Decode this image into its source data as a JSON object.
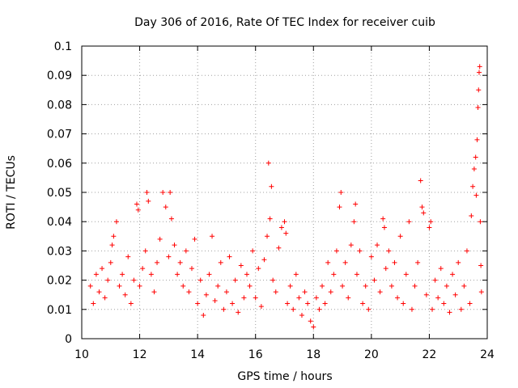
{
  "chart_data": {
    "type": "scatter",
    "title": "Day 306 of 2016, Rate Of TEC Index for receiver cuib",
    "xlabel": "GPS time / hours",
    "ylabel": "ROTI / TECUs",
    "xlim": [
      10,
      24
    ],
    "ylim": [
      0,
      0.1
    ],
    "x_ticks": [
      10,
      12,
      14,
      16,
      18,
      20,
      22,
      24
    ],
    "x_tick_labels": [
      "10",
      "12",
      "14",
      "16",
      "18",
      "20",
      "22",
      "24"
    ],
    "y_ticks": [
      0,
      0.01,
      0.02,
      0.03,
      0.04,
      0.05,
      0.06,
      0.07,
      0.08,
      0.09,
      0.1
    ],
    "y_tick_labels": [
      "0",
      "0.01",
      "0.02",
      "0.03",
      "0.04",
      "0.05",
      "0.06",
      "0.07",
      "0.08",
      "0.09",
      "0.1"
    ],
    "grid": true,
    "marker": "+",
    "marker_color": "#ff0000",
    "series": [
      {
        "name": "ROTI",
        "points": [
          [
            10.3,
            0.018
          ],
          [
            10.4,
            0.012
          ],
          [
            10.5,
            0.022
          ],
          [
            10.6,
            0.016
          ],
          [
            10.7,
            0.024
          ],
          [
            10.8,
            0.014
          ],
          [
            10.9,
            0.02
          ],
          [
            11.0,
            0.026
          ],
          [
            11.05,
            0.032
          ],
          [
            11.1,
            0.035
          ],
          [
            11.2,
            0.04
          ],
          [
            11.3,
            0.018
          ],
          [
            11.4,
            0.022
          ],
          [
            11.5,
            0.015
          ],
          [
            11.6,
            0.028
          ],
          [
            11.7,
            0.012
          ],
          [
            11.8,
            0.02
          ],
          [
            11.9,
            0.046
          ],
          [
            11.95,
            0.044
          ],
          [
            12.0,
            0.018
          ],
          [
            12.1,
            0.024
          ],
          [
            12.2,
            0.03
          ],
          [
            12.25,
            0.05
          ],
          [
            12.3,
            0.047
          ],
          [
            12.4,
            0.022
          ],
          [
            12.5,
            0.016
          ],
          [
            12.6,
            0.026
          ],
          [
            12.7,
            0.034
          ],
          [
            12.8,
            0.05
          ],
          [
            12.9,
            0.045
          ],
          [
            13.0,
            0.028
          ],
          [
            13.05,
            0.05
          ],
          [
            13.1,
            0.041
          ],
          [
            13.2,
            0.032
          ],
          [
            13.3,
            0.022
          ],
          [
            13.4,
            0.026
          ],
          [
            13.5,
            0.018
          ],
          [
            13.6,
            0.03
          ],
          [
            13.7,
            0.016
          ],
          [
            13.8,
            0.024
          ],
          [
            13.9,
            0.034
          ],
          [
            14.0,
            0.012
          ],
          [
            14.1,
            0.02
          ],
          [
            14.2,
            0.008
          ],
          [
            14.3,
            0.015
          ],
          [
            14.4,
            0.022
          ],
          [
            14.5,
            0.035
          ],
          [
            14.6,
            0.013
          ],
          [
            14.7,
            0.018
          ],
          [
            14.8,
            0.026
          ],
          [
            14.9,
            0.01
          ],
          [
            15.0,
            0.016
          ],
          [
            15.1,
            0.028
          ],
          [
            15.2,
            0.012
          ],
          [
            15.3,
            0.02
          ],
          [
            15.4,
            0.009
          ],
          [
            15.5,
            0.025
          ],
          [
            15.6,
            0.014
          ],
          [
            15.7,
            0.022
          ],
          [
            15.8,
            0.018
          ],
          [
            15.9,
            0.03
          ],
          [
            16.0,
            0.014
          ],
          [
            16.1,
            0.024
          ],
          [
            16.2,
            0.011
          ],
          [
            16.3,
            0.027
          ],
          [
            16.4,
            0.035
          ],
          [
            16.45,
            0.06
          ],
          [
            16.5,
            0.041
          ],
          [
            16.55,
            0.052
          ],
          [
            16.6,
            0.02
          ],
          [
            16.7,
            0.016
          ],
          [
            16.8,
            0.031
          ],
          [
            16.9,
            0.038
          ],
          [
            17.0,
            0.04
          ],
          [
            17.05,
            0.036
          ],
          [
            17.1,
            0.012
          ],
          [
            17.2,
            0.018
          ],
          [
            17.3,
            0.01
          ],
          [
            17.4,
            0.022
          ],
          [
            17.5,
            0.014
          ],
          [
            17.6,
            0.008
          ],
          [
            17.7,
            0.016
          ],
          [
            17.8,
            0.012
          ],
          [
            17.9,
            0.006
          ],
          [
            18.0,
            0.004
          ],
          [
            18.1,
            0.014
          ],
          [
            18.2,
            0.01
          ],
          [
            18.3,
            0.018
          ],
          [
            18.4,
            0.012
          ],
          [
            18.5,
            0.026
          ],
          [
            18.6,
            0.016
          ],
          [
            18.7,
            0.022
          ],
          [
            18.8,
            0.03
          ],
          [
            18.9,
            0.045
          ],
          [
            18.95,
            0.05
          ],
          [
            19.0,
            0.018
          ],
          [
            19.1,
            0.026
          ],
          [
            19.2,
            0.014
          ],
          [
            19.3,
            0.032
          ],
          [
            19.4,
            0.04
          ],
          [
            19.45,
            0.046
          ],
          [
            19.5,
            0.022
          ],
          [
            19.6,
            0.03
          ],
          [
            19.7,
            0.012
          ],
          [
            19.8,
            0.018
          ],
          [
            19.9,
            0.01
          ],
          [
            20.0,
            0.028
          ],
          [
            20.1,
            0.02
          ],
          [
            20.2,
            0.032
          ],
          [
            20.3,
            0.016
          ],
          [
            20.4,
            0.041
          ],
          [
            20.45,
            0.038
          ],
          [
            20.5,
            0.024
          ],
          [
            20.6,
            0.03
          ],
          [
            20.7,
            0.018
          ],
          [
            20.8,
            0.026
          ],
          [
            20.9,
            0.014
          ],
          [
            21.0,
            0.035
          ],
          [
            21.1,
            0.012
          ],
          [
            21.2,
            0.022
          ],
          [
            21.3,
            0.04
          ],
          [
            21.4,
            0.01
          ],
          [
            21.5,
            0.018
          ],
          [
            21.6,
            0.026
          ],
          [
            21.7,
            0.054
          ],
          [
            21.75,
            0.045
          ],
          [
            21.8,
            0.043
          ],
          [
            21.9,
            0.015
          ],
          [
            22.0,
            0.038
          ],
          [
            22.05,
            0.04
          ],
          [
            22.1,
            0.01
          ],
          [
            22.2,
            0.02
          ],
          [
            22.3,
            0.014
          ],
          [
            22.4,
            0.024
          ],
          [
            22.5,
            0.012
          ],
          [
            22.6,
            0.018
          ],
          [
            22.7,
            0.009
          ],
          [
            22.8,
            0.022
          ],
          [
            22.9,
            0.015
          ],
          [
            23.0,
            0.026
          ],
          [
            23.1,
            0.01
          ],
          [
            23.2,
            0.018
          ],
          [
            23.3,
            0.03
          ],
          [
            23.4,
            0.012
          ],
          [
            23.45,
            0.042
          ],
          [
            23.5,
            0.052
          ],
          [
            23.55,
            0.058
          ],
          [
            23.6,
            0.062
          ],
          [
            23.62,
            0.049
          ],
          [
            23.65,
            0.068
          ],
          [
            23.68,
            0.079
          ],
          [
            23.7,
            0.085
          ],
          [
            23.72,
            0.091
          ],
          [
            23.74,
            0.093
          ],
          [
            23.76,
            0.04
          ],
          [
            23.78,
            0.025
          ],
          [
            23.8,
            0.016
          ]
        ]
      }
    ]
  }
}
